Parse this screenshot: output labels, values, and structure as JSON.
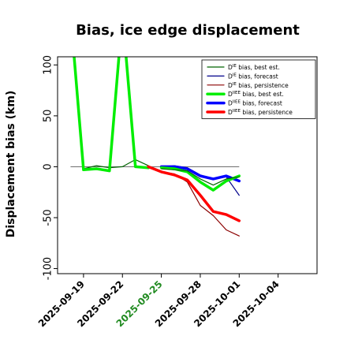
{
  "chart_data": {
    "type": "line",
    "title": "Bias, ice edge displacement",
    "xlabel": "",
    "ylabel": "Displacement bias (km)",
    "ylim": [
      -105,
      108
    ],
    "xlim": [
      "2025-09-17",
      "2025-10-07"
    ],
    "yticks": [
      100,
      50,
      0,
      -50,
      -100
    ],
    "xticks": [
      {
        "label": "2025-09-19",
        "date": "2025-09-19",
        "color": "#000000"
      },
      {
        "label": "2025-09-22",
        "date": "2025-09-22",
        "color": "#000000"
      },
      {
        "label": "2025-09-25",
        "date": "2025-09-25",
        "color": "#228B22"
      },
      {
        "label": "2025-09-28",
        "date": "2025-09-28",
        "color": "#000000"
      },
      {
        "label": "2025-10-01",
        "date": "2025-10-01",
        "color": "#000000"
      },
      {
        "label": "2025-10-04",
        "date": "2025-10-04",
        "color": "#000000"
      }
    ],
    "zero_line": true,
    "legend_position": "top-right",
    "series": [
      {
        "name": "D^IE bias, best est.",
        "color": "#006400",
        "width": 1.2,
        "x": [
          "2025-09-18",
          "2025-09-19",
          "2025-09-20",
          "2025-09-21",
          "2025-09-22",
          "2025-09-23",
          "2025-09-24"
        ],
        "y": [
          150,
          -2,
          1,
          -1,
          0,
          7,
          1
        ]
      },
      {
        "name": "D^IE bias, forecast",
        "color": "#00008B",
        "width": 1.2,
        "x": [
          "2025-09-25",
          "2025-09-26",
          "2025-09-27",
          "2025-09-28",
          "2025-09-29",
          "2025-09-30",
          "2025-10-01"
        ],
        "y": [
          0,
          1,
          -1,
          -8,
          -12,
          -10,
          -28
        ]
      },
      {
        "name": "D^IE bias, persistence",
        "color": "#8B0000",
        "width": 1.2,
        "x": [
          "2025-09-24",
          "2025-09-25",
          "2025-09-26",
          "2025-09-27",
          "2025-09-28",
          "2025-09-29",
          "2025-09-30",
          "2025-10-01"
        ],
        "y": [
          0,
          -5,
          -7,
          -15,
          -38,
          -48,
          -62,
          -68
        ]
      },
      {
        "name": "D^IIEE bias, best est.",
        "color": "#00EE00",
        "width": 3.5,
        "x": [
          "2025-09-18",
          "2025-09-19",
          "2025-09-20",
          "2025-09-21",
          "2025-09-22",
          "2025-09-23",
          "2025-09-24"
        ],
        "y": [
          150,
          -3,
          -2,
          -4,
          150,
          0,
          -1
        ]
      },
      {
        "name": "D^IIEE bias, forecast",
        "color": "#0000FF",
        "width": 3.5,
        "x": [
          "2025-09-25",
          "2025-09-26",
          "2025-09-27",
          "2025-09-28",
          "2025-09-29",
          "2025-09-30",
          "2025-10-01"
        ],
        "y": [
          0,
          0,
          -2,
          -9,
          -12,
          -9,
          -14
        ]
      },
      {
        "name": "D^IIEE bias, persistence",
        "color": "#FF0000",
        "width": 3.5,
        "x": [
          "2025-09-24",
          "2025-09-25",
          "2025-09-26",
          "2025-09-27",
          "2025-09-28",
          "2025-09-29",
          "2025-09-30",
          "2025-10-01"
        ],
        "y": [
          0,
          -5,
          -8,
          -13,
          -28,
          -44,
          -47,
          -53
        ]
      },
      {
        "name": "",
        "color": "#00EE00",
        "width": 3.5,
        "x": [
          "2025-09-25",
          "2025-09-26",
          "2025-09-27",
          "2025-09-28",
          "2025-09-29",
          "2025-09-30",
          "2025-10-01"
        ],
        "y": [
          -1,
          -2,
          -5,
          -15,
          -23,
          -14,
          -9
        ]
      },
      {
        "name": "",
        "color": "#006400",
        "width": 1.2,
        "x": [
          "2025-09-25",
          "2025-09-26",
          "2025-09-27",
          "2025-09-28",
          "2025-09-29",
          "2025-09-30",
          "2025-10-01"
        ],
        "y": [
          -2,
          -3,
          -4,
          -12,
          -18,
          -12,
          -10
        ]
      }
    ],
    "legend": [
      {
        "prefix": "D",
        "sup": "IE",
        "suffix": " bias, best est.",
        "color": "#006400",
        "width": 1.2
      },
      {
        "prefix": "D",
        "sup": "IE",
        "suffix": " bias, forecast",
        "color": "#00008B",
        "width": 1.2
      },
      {
        "prefix": "D",
        "sup": "IE",
        "suffix": " bias, persistence",
        "color": "#8B0000",
        "width": 1.2
      },
      {
        "prefix": "D",
        "sup": "IIEE",
        "suffix": " bias, best est.",
        "color": "#00EE00",
        "width": 3.5
      },
      {
        "prefix": "D",
        "sup": "IIEE",
        "suffix": " bias, forecast",
        "color": "#0000FF",
        "width": 3.5
      },
      {
        "prefix": "D",
        "sup": "IIEE",
        "suffix": " bias, persistence",
        "color": "#FF0000",
        "width": 3.5
      }
    ]
  }
}
